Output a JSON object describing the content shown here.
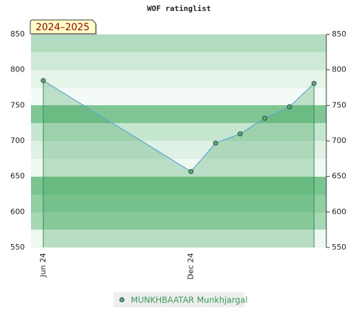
{
  "chart_data": {
    "type": "line",
    "title": "WOF ratinglist",
    "annotation": "2024–2025",
    "categories": [
      "Jun 24",
      null,
      null,
      null,
      null,
      null,
      "Dec 24",
      null,
      null,
      null,
      null,
      null
    ],
    "series": [
      {
        "name": "MUNKHBAATAR Munkhjargal",
        "color": "#5aa6d6",
        "marker_color": "#5aa86e",
        "values": [
          785,
          null,
          null,
          null,
          null,
          null,
          657,
          697,
          710,
          732,
          748,
          781
        ]
      }
    ],
    "connect_gaps": true,
    "ylim": [
      550,
      850
    ],
    "yticks": [
      550,
      600,
      650,
      700,
      750,
      800,
      850
    ],
    "y2lim": [
      550,
      850
    ],
    "y2ticks": [
      550,
      600,
      650,
      700,
      750,
      800,
      850
    ],
    "legend": "bottom"
  }
}
